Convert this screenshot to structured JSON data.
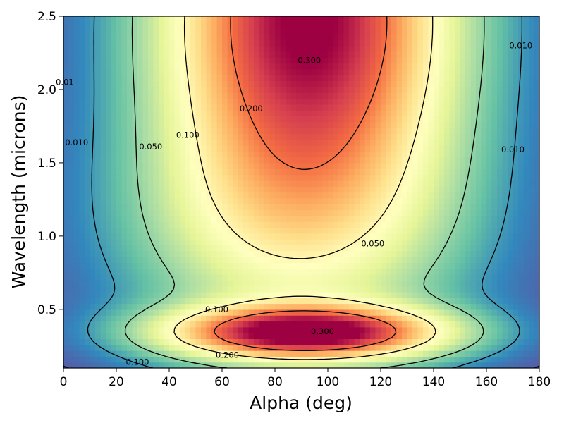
{
  "chart_data": {
    "type": "heatmap",
    "title": "",
    "xlabel": "Alpha (deg)",
    "ylabel": "Wavelength (microns)",
    "xlim": [
      0,
      180
    ],
    "ylim": [
      0.1,
      2.5
    ],
    "x_ticks": [
      "0",
      "20",
      "40",
      "60",
      "80",
      "100",
      "120",
      "140",
      "160",
      "180"
    ],
    "y_ticks": [
      "0.5",
      "1.0",
      "1.5",
      "2.0",
      "2.5"
    ],
    "colormap": "Spectral_r",
    "grid": false,
    "contour_levels": [
      0.01,
      0.05,
      0.1,
      0.2,
      0.3
    ],
    "contour_labels": [
      {
        "text": "0.300",
        "x": 93,
        "y": 2.2
      },
      {
        "text": "0.200",
        "x": 71,
        "y": 1.87
      },
      {
        "text": "0.100",
        "x": 47,
        "y": 1.69
      },
      {
        "text": "0.050",
        "x": 33,
        "y": 1.61
      },
      {
        "text": "0.010",
        "x": 5,
        "y": 1.64
      },
      {
        "text": "0.01",
        "x": 0.5,
        "y": 2.05
      },
      {
        "text": "0.010",
        "x": 173,
        "y": 2.3
      },
      {
        "text": "0.010",
        "x": 170,
        "y": 1.59
      },
      {
        "text": "0.050",
        "x": 117,
        "y": 0.95
      },
      {
        "text": "0.100",
        "x": 58,
        "y": 0.5
      },
      {
        "text": "0.300",
        "x": 98,
        "y": 0.35
      },
      {
        "text": "0.200",
        "x": 62,
        "y": 0.19
      },
      {
        "text": "0.100",
        "x": 28,
        "y": 0.14
      }
    ]
  }
}
